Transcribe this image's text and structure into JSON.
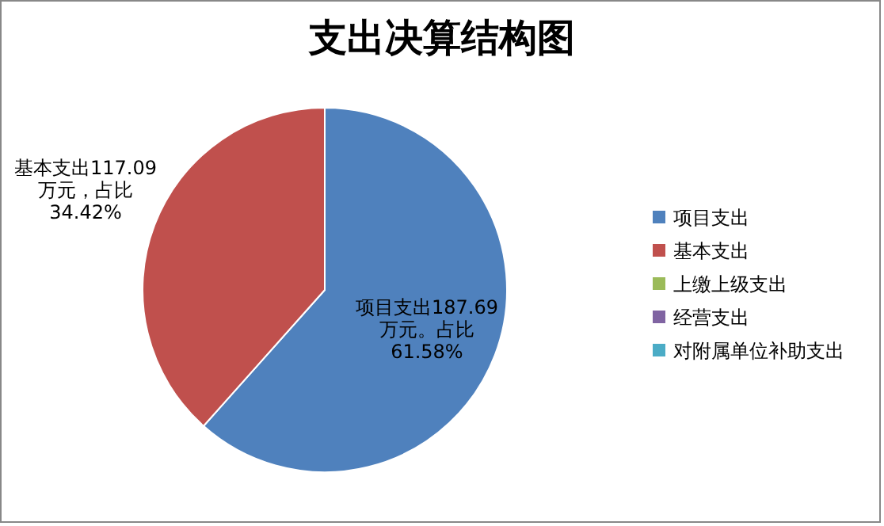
{
  "chart_data": {
    "type": "pie",
    "title": "支出决算结构图",
    "categories": [
      "项目支出",
      "基本支出",
      "上缴上级支出",
      "经营支出",
      "对附属单位补助支出"
    ],
    "values": [
      187.69,
      117.09,
      0,
      0,
      0
    ],
    "colors": [
      "#4f81bd",
      "#c0504d",
      "#9bbb59",
      "#8064a2",
      "#4bacc6"
    ],
    "value_labels": [
      "项目支出187.69万元。占比61.58%",
      "基本支出117.09万元，占比34.42%",
      null,
      null,
      null
    ],
    "legend": "right"
  }
}
